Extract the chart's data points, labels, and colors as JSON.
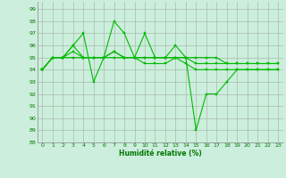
{
  "xlabel": "Humidité relative (%)",
  "bg_color": "#cceedd",
  "grid_color": "#aabbaa",
  "line_color": "#00bb00",
  "xlim": [
    -0.5,
    23.5
  ],
  "ylim": [
    88,
    99.6
  ],
  "yticks": [
    88,
    89,
    90,
    91,
    92,
    93,
    94,
    95,
    96,
    97,
    98,
    99
  ],
  "xticks": [
    0,
    1,
    2,
    3,
    4,
    5,
    6,
    7,
    8,
    9,
    10,
    11,
    12,
    13,
    14,
    15,
    16,
    17,
    18,
    19,
    20,
    21,
    22,
    23
  ],
  "lines": [
    [
      94,
      95,
      95,
      96,
      97,
      93,
      95,
      98,
      97,
      95,
      97,
      95,
      95,
      96,
      95,
      89,
      92,
      92,
      93,
      94,
      94,
      94,
      94,
      94
    ],
    [
      94,
      95,
      95,
      96,
      95,
      95,
      95,
      95.5,
      95,
      95,
      94.5,
      94.5,
      94.5,
      95,
      94.5,
      94,
      94,
      94,
      94,
      94,
      94,
      94,
      94,
      94
    ],
    [
      94,
      95,
      95,
      95.5,
      95,
      95,
      95,
      95.5,
      95,
      95,
      95,
      95,
      95,
      95,
      95,
      94.5,
      94.5,
      94.5,
      94.5,
      94.5,
      94.5,
      94.5,
      94.5,
      94.5
    ],
    [
      94,
      95,
      95,
      95,
      95,
      95,
      95,
      95,
      95,
      95,
      95,
      95,
      95,
      95,
      95,
      95,
      95,
      95,
      94.5,
      94.5,
      94.5,
      94.5,
      94.5,
      94.5
    ]
  ]
}
